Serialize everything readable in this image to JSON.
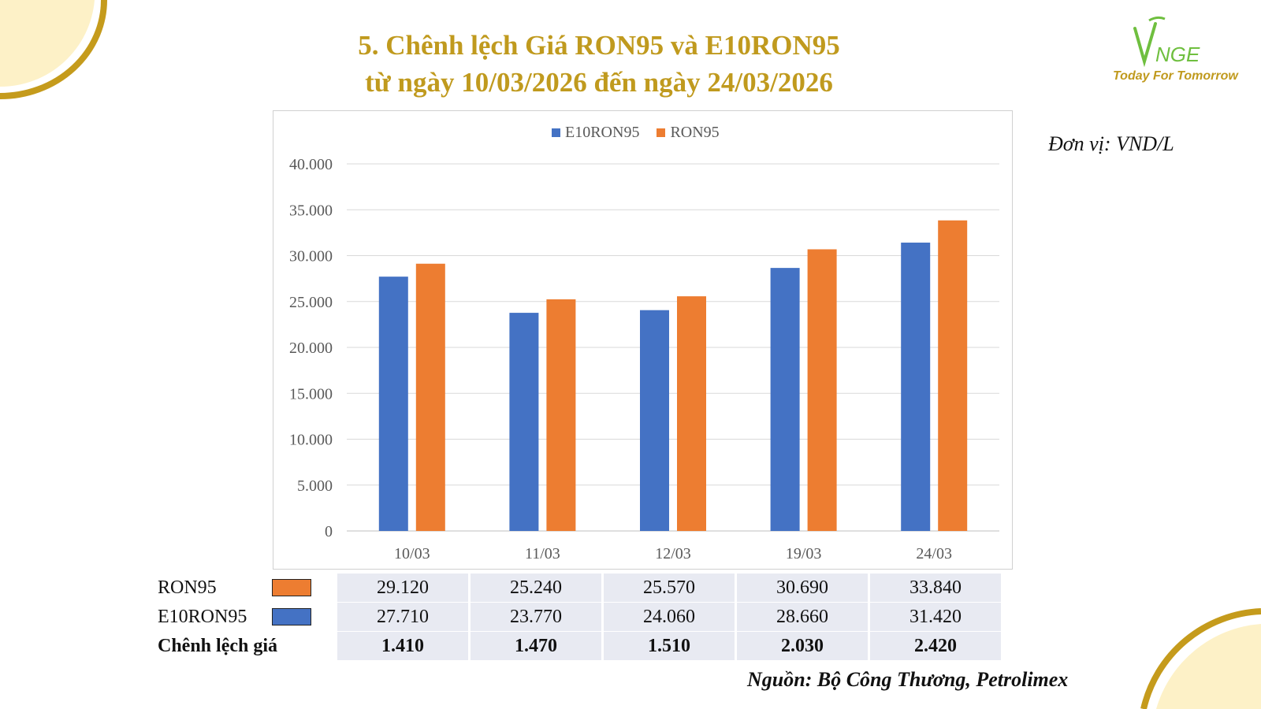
{
  "title": {
    "line1": "5. Chênh lệch Giá RON95 và E10RON95",
    "line2": "từ ngày 10/03/2026 đến ngày 24/03/2026"
  },
  "logo": {
    "mark": "VNGE",
    "tagline": "Today For Tomorrow"
  },
  "unit": "Đơn vị: VND/L",
  "colors": {
    "e10": "#4472c4",
    "ron95": "#ed7d31",
    "title": "#c09a1e",
    "logo_green": "#6fbf3f",
    "logo_tag": "#c09a1e"
  },
  "chart_data": {
    "type": "bar",
    "categories": [
      "10/03",
      "11/03",
      "12/03",
      "19/03",
      "24/03"
    ],
    "series": [
      {
        "name": "E10RON95",
        "values": [
          27710,
          23770,
          24060,
          28660,
          31420
        ]
      },
      {
        "name": "RON95",
        "values": [
          29120,
          25240,
          25570,
          30690,
          33840
        ]
      }
    ],
    "ylim": [
      0,
      40000
    ],
    "yticks": [
      0,
      5000,
      10000,
      15000,
      20000,
      25000,
      30000,
      35000,
      40000
    ],
    "ytick_labels": [
      "0",
      "5.000",
      "10.000",
      "15.000",
      "20.000",
      "25.000",
      "30.000",
      "35.000",
      "40.000"
    ],
    "legend": "top-center",
    "grid": true
  },
  "table": {
    "rows": [
      {
        "label": "RON95",
        "values": [
          "29.120",
          "25.240",
          "25.570",
          "30.690",
          "33.840"
        ]
      },
      {
        "label": "E10RON95",
        "values": [
          "27.710",
          "23.770",
          "24.060",
          "28.660",
          "31.420"
        ]
      },
      {
        "label": "Chênh lệch giá",
        "values": [
          "1.410",
          "1.470",
          "1.510",
          "2.030",
          "2.420"
        ]
      }
    ]
  },
  "source": "Nguồn: Bộ Công Thương, Petrolimex"
}
